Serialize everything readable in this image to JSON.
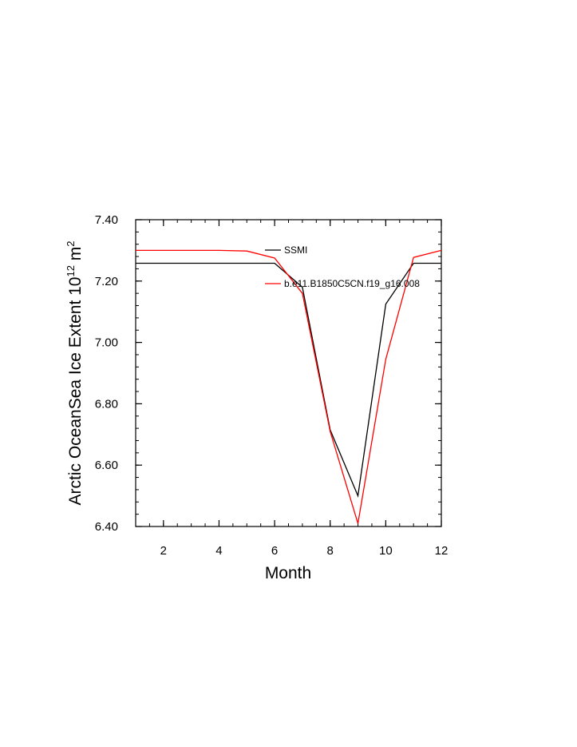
{
  "chart_data": {
    "type": "line",
    "xlabel": "Month",
    "ylabel": {
      "text": "Arctic OceanSea Ice Extent 10",
      "superscript": "12",
      "unit": " m",
      "unit_superscript": "2"
    },
    "xlim": [
      1,
      12
    ],
    "ylim": [
      6.4,
      7.4
    ],
    "x_ticks": [
      2,
      4,
      6,
      8,
      10,
      12
    ],
    "x_tick_labels": [
      "2",
      "4",
      "6",
      "8",
      "10",
      "12"
    ],
    "y_ticks": [
      6.4,
      6.6,
      6.8,
      7.0,
      7.2,
      7.4
    ],
    "y_tick_labels": [
      "6.40",
      "6.60",
      "6.80",
      "7.00",
      "7.20",
      "7.40"
    ],
    "x": [
      1,
      2,
      3,
      4,
      5,
      6,
      7,
      8,
      9,
      10,
      11,
      12
    ],
    "series": [
      {
        "name": "SSMI",
        "color": "#000000",
        "values": [
          7.258,
          7.258,
          7.258,
          7.258,
          7.258,
          7.258,
          7.18,
          6.715,
          6.5,
          7.125,
          7.258,
          7.258
        ]
      },
      {
        "name": "b.e11.B1850C5CN.f19_g16.008",
        "color": "#ff0000",
        "values": [
          7.3,
          7.3,
          7.3,
          7.3,
          7.298,
          7.275,
          7.16,
          6.71,
          6.41,
          6.945,
          7.277,
          7.3
        ]
      }
    ],
    "legend_position": "top-center inside",
    "grid": false
  }
}
